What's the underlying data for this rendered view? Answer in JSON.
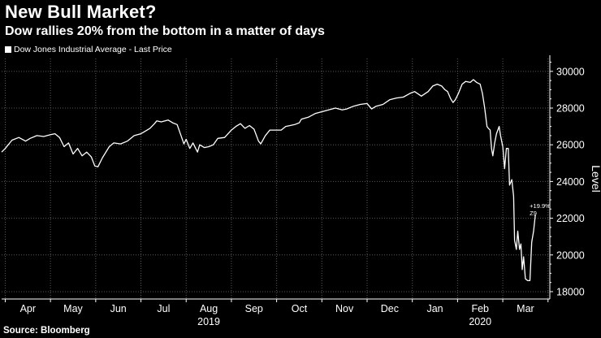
{
  "title": "New Bull Market?",
  "subtitle": "Dow rallies 20% from the bottom in a matter of days",
  "source": "Source: Bloomberg",
  "colors": {
    "background": "#000000",
    "line": "#ffffff",
    "grid": "#5a5a5a",
    "axis_text": "#ffffff"
  },
  "chart_data": {
    "type": "line",
    "title": "New Bull Market?",
    "subtitle": "Dow rallies 20% from the bottom in a matter of days",
    "ylabel": "Level",
    "ylim": [
      17600,
      30700
    ],
    "yticks": [
      18000,
      20000,
      22000,
      24000,
      26000,
      28000,
      30000
    ],
    "ytick_labels": [
      "18000",
      "20000",
      "22000",
      "24000",
      "26000",
      "28000",
      "30000"
    ],
    "x_months": [
      "Apr",
      "May",
      "Jun",
      "Jul",
      "Aug",
      "Sep",
      "Oct",
      "Nov",
      "Dec",
      "Jan",
      "Feb",
      "Mar"
    ],
    "x_years": [
      {
        "label": "2019",
        "month_index": 4
      },
      {
        "label": "2020",
        "month_index": 10
      }
    ],
    "x_range_months": [
      -0.08,
      12.04
    ],
    "grid": true,
    "legend": [
      {
        "name": "Dow Jones Industrial Average - Last Price",
        "position": "top-left"
      }
    ],
    "annotation": {
      "text": "+19.9%",
      "sub": "Z9"
    },
    "series": [
      {
        "name": "Dow Jones Industrial Average - Last Price",
        "points": [
          [
            -0.08,
            25600
          ],
          [
            0.0,
            25800
          ],
          [
            0.15,
            26250
          ],
          [
            0.3,
            26400
          ],
          [
            0.45,
            26200
          ],
          [
            0.55,
            26350
          ],
          [
            0.7,
            26500
          ],
          [
            0.85,
            26450
          ],
          [
            1.0,
            26550
          ],
          [
            1.1,
            26600
          ],
          [
            1.2,
            26400
          ],
          [
            1.3,
            25900
          ],
          [
            1.4,
            26100
          ],
          [
            1.5,
            25500
          ],
          [
            1.6,
            25800
          ],
          [
            1.7,
            25400
          ],
          [
            1.8,
            25600
          ],
          [
            1.9,
            25350
          ],
          [
            1.98,
            24850
          ],
          [
            2.05,
            24800
          ],
          [
            2.15,
            25300
          ],
          [
            2.3,
            25900
          ],
          [
            2.4,
            26100
          ],
          [
            2.55,
            26050
          ],
          [
            2.7,
            26200
          ],
          [
            2.85,
            26500
          ],
          [
            3.0,
            26600
          ],
          [
            3.1,
            26750
          ],
          [
            3.2,
            26900
          ],
          [
            3.3,
            27150
          ],
          [
            3.35,
            27300
          ],
          [
            3.45,
            27250
          ],
          [
            3.6,
            27350
          ],
          [
            3.7,
            27200
          ],
          [
            3.8,
            27100
          ],
          [
            3.9,
            26400
          ],
          [
            3.95,
            26050
          ],
          [
            4.0,
            26300
          ],
          [
            4.08,
            25800
          ],
          [
            4.15,
            26100
          ],
          [
            4.25,
            25600
          ],
          [
            4.3,
            26000
          ],
          [
            4.4,
            25850
          ],
          [
            4.5,
            25900
          ],
          [
            4.6,
            26000
          ],
          [
            4.7,
            26350
          ],
          [
            4.85,
            26400
          ],
          [
            5.0,
            26800
          ],
          [
            5.1,
            27000
          ],
          [
            5.2,
            27150
          ],
          [
            5.3,
            26900
          ],
          [
            5.4,
            27050
          ],
          [
            5.5,
            26850
          ],
          [
            5.6,
            26200
          ],
          [
            5.65,
            26050
          ],
          [
            5.75,
            26500
          ],
          [
            5.85,
            26800
          ],
          [
            6.0,
            26800
          ],
          [
            6.1,
            26800
          ],
          [
            6.2,
            27000
          ],
          [
            6.3,
            27050
          ],
          [
            6.4,
            27100
          ],
          [
            6.5,
            27200
          ],
          [
            6.55,
            27400
          ],
          [
            6.7,
            27500
          ],
          [
            6.85,
            27700
          ],
          [
            7.0,
            27800
          ],
          [
            7.15,
            27900
          ],
          [
            7.3,
            28000
          ],
          [
            7.45,
            27900
          ],
          [
            7.55,
            27950
          ],
          [
            7.7,
            28100
          ],
          [
            7.85,
            28200
          ],
          [
            8.0,
            28250
          ],
          [
            8.1,
            27950
          ],
          [
            8.2,
            28100
          ],
          [
            8.35,
            28200
          ],
          [
            8.5,
            28450
          ],
          [
            8.65,
            28550
          ],
          [
            8.8,
            28600
          ],
          [
            8.95,
            28800
          ],
          [
            9.05,
            28900
          ],
          [
            9.2,
            28650
          ],
          [
            9.35,
            28900
          ],
          [
            9.45,
            29200
          ],
          [
            9.55,
            29300
          ],
          [
            9.65,
            29200
          ],
          [
            9.72,
            29000
          ],
          [
            9.78,
            28900
          ],
          [
            9.85,
            28500
          ],
          [
            9.9,
            28300
          ],
          [
            9.95,
            28450
          ],
          [
            10.02,
            28800
          ],
          [
            10.1,
            29300
          ],
          [
            10.18,
            29450
          ],
          [
            10.28,
            29400
          ],
          [
            10.35,
            29550
          ],
          [
            10.42,
            29400
          ],
          [
            10.5,
            29300
          ],
          [
            10.55,
            28800
          ],
          [
            10.6,
            28000
          ],
          [
            10.65,
            27000
          ],
          [
            10.68,
            26900
          ],
          [
            10.72,
            26800
          ],
          [
            10.75,
            25800
          ],
          [
            10.78,
            25400
          ],
          [
            10.82,
            26100
          ],
          [
            10.86,
            26600
          ],
          [
            10.92,
            27000
          ],
          [
            10.95,
            26500
          ],
          [
            11.0,
            25900
          ],
          [
            11.04,
            24700
          ],
          [
            11.08,
            25800
          ],
          [
            11.12,
            25800
          ],
          [
            11.15,
            23800
          ],
          [
            11.2,
            24100
          ],
          [
            11.24,
            23200
          ],
          [
            11.26,
            20800
          ],
          [
            11.3,
            20300
          ],
          [
            11.33,
            21300
          ],
          [
            11.37,
            20300
          ],
          [
            11.4,
            20600
          ],
          [
            11.43,
            19200
          ],
          [
            11.46,
            19900
          ],
          [
            11.5,
            18700
          ],
          [
            11.55,
            18600
          ],
          [
            11.6,
            18600
          ],
          [
            11.64,
            20700
          ],
          [
            11.68,
            21300
          ],
          [
            11.72,
            22200
          ]
        ]
      }
    ]
  }
}
